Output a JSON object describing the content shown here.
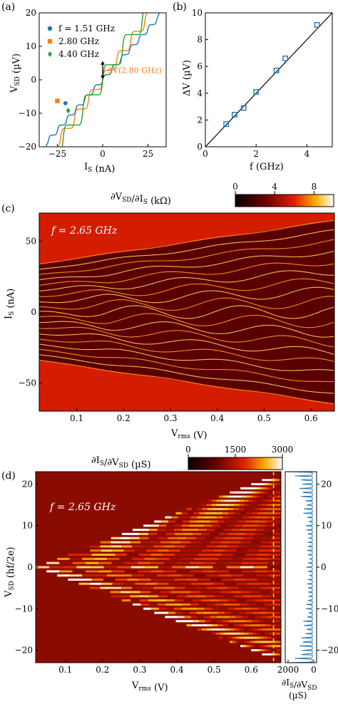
{
  "colors": {
    "series_a": "#1f77b4",
    "series_b": "#ff7f0e",
    "series_c": "#2ca02c",
    "heat_low": "#0a0000",
    "heat_mid": "#d01a00",
    "heat_high": "#ffffff",
    "cut_line": "#d4e600"
  },
  "chart_data": [
    {
      "panel": "(a)",
      "type": "line",
      "xlabel": "I_S (nA)",
      "ylabel": "V_SD (µV)",
      "xlim": [
        -35,
        35
      ],
      "ylim": [
        -20,
        20
      ],
      "xticks": [
        "−25",
        "0",
        "25"
      ],
      "yticks": [
        "20",
        "10",
        "0",
        "−10",
        "−20"
      ],
      "legend_position": "upper-left",
      "series": [
        {
          "name": "f = 1.51 GHz",
          "freq_ghz": 1.51,
          "color": "#1f77b4",
          "marker": "circle",
          "marker_point": [
            -20.5,
            -7.0
          ]
        },
        {
          "name": "2.80 GHz",
          "freq_ghz": 2.8,
          "color": "#ff7f0e",
          "marker": "square",
          "marker_point": [
            -25.0,
            -6.3
          ]
        },
        {
          "name": "4.40 GHz",
          "freq_ghz": 4.4,
          "color": "#2ca02c",
          "marker": "diamond",
          "marker_point": [
            -19.0,
            -9.2
          ]
        }
      ],
      "annotation": {
        "text": "ΔV(2.80 GHz)",
        "from": [
          0,
          5.8
        ],
        "to": [
          0,
          0
        ]
      }
    },
    {
      "panel": "(b)",
      "type": "scatter",
      "xlabel": "f (GHz)",
      "ylabel": "ΔV (µV)",
      "xlim": [
        0,
        5
      ],
      "ylim": [
        0,
        10
      ],
      "xticks": [
        "0",
        "2",
        "4"
      ],
      "yticks": [
        "0",
        "2",
        "4",
        "6",
        "8",
        "10"
      ],
      "x": [
        0.82,
        1.15,
        1.51,
        2.0,
        2.8,
        3.15,
        4.4
      ],
      "y": [
        1.7,
        2.4,
        2.9,
        4.1,
        5.7,
        6.6,
        9.1
      ],
      "fit_line": {
        "x": [
          0,
          5
        ],
        "y": [
          0,
          10.3
        ]
      }
    },
    {
      "panel": "(c)",
      "type": "heatmap",
      "annotation": "f = 2.65 GHz",
      "xlabel": "V_rms (V)",
      "ylabel": "I_S (nA)",
      "xlim": [
        0.02,
        0.65
      ],
      "ylim": [
        -70,
        70
      ],
      "xticks": [
        "0.1",
        "0.2",
        "0.3",
        "0.4",
        "0.5",
        "0.6"
      ],
      "yticks": [
        "50",
        "0",
        "−50"
      ],
      "colorbar": {
        "label": "∂V_SD/∂I_S (kΩ)",
        "ticks": [
          "0",
          "4",
          "8"
        ],
        "range": [
          0,
          10
        ]
      },
      "switching_current_nA": 34
    },
    {
      "panel": "(d)",
      "type": "heatmap",
      "annotation": "f = 2.65 GHz",
      "xlabel": "V_rms (V)",
      "ylabel": "V_SD (hf/2e)",
      "xlim": [
        0.02,
        0.68
      ],
      "ylim": [
        -23,
        23
      ],
      "xticks": [
        "0.1",
        "0.2",
        "0.3",
        "0.4",
        "0.5",
        "0.6"
      ],
      "yticks": [
        "20",
        "10",
        "0",
        "−10",
        "−20"
      ],
      "colorbar": {
        "label": "∂I_S/∂V_SD (µS)",
        "ticks": [
          "0",
          "1500",
          "3000"
        ],
        "range": [
          0,
          3000
        ]
      },
      "cut_vrms": 0.66,
      "side_profile": {
        "xlabel": "∂I_S/∂V_SD",
        "xunit": "(µS)",
        "xticks": [
          "2000",
          "0"
        ],
        "yticks": [
          "20",
          "10",
          "0",
          "−10",
          "−20"
        ],
        "note": "linecut at the dashed line"
      }
    }
  ]
}
